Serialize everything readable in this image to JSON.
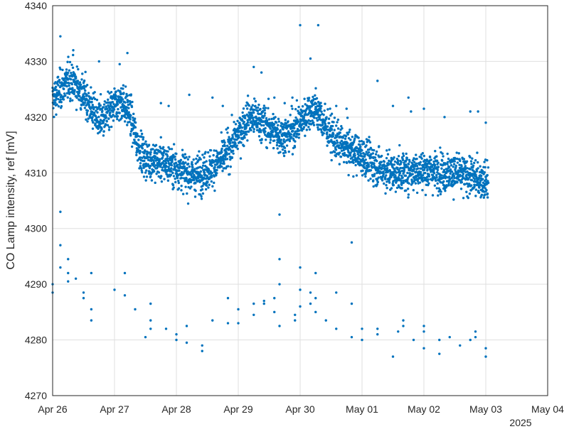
{
  "chart_data": {
    "type": "scatter",
    "title": "",
    "xlabel": "",
    "ylabel": "CO Lamp intensity, ref [mV]",
    "x_secondary_label": "2025",
    "x_ticks": [
      "Apr 26",
      "Apr 27",
      "Apr 28",
      "Apr 29",
      "Apr 30",
      "May 01",
      "May 02",
      "May 03",
      "May 04"
    ],
    "xlim": [
      "2025-04-26",
      "2025-05-04"
    ],
    "ylim": [
      4270,
      4340
    ],
    "y_ticks": [
      4270,
      4280,
      4290,
      4300,
      4310,
      4320,
      4330,
      4340
    ],
    "grid": true,
    "marker_color": "#0072BD",
    "series": [
      {
        "trend_points": [
          [
            "2025-04-26 00:00",
            4323
          ],
          [
            "2025-04-26 04:00",
            4325.5
          ],
          [
            "2025-04-26 07:00",
            4327
          ],
          [
            "2025-04-26 12:00",
            4324
          ],
          [
            "2025-04-26 17:00",
            4320
          ],
          [
            "2025-04-26 20:00",
            4319.5
          ],
          [
            "2025-04-27 00:00",
            4322
          ],
          [
            "2025-04-27 03:00",
            4323
          ],
          [
            "2025-04-27 06:00",
            4320.5
          ],
          [
            "2025-04-27 09:00",
            4315
          ],
          [
            "2025-04-27 12:00",
            4312.5
          ],
          [
            "2025-04-27 18:00",
            4312
          ],
          [
            "2025-04-28 00:00",
            4311
          ],
          [
            "2025-04-28 06:00",
            4309.5
          ],
          [
            "2025-04-28 10:00",
            4310
          ],
          [
            "2025-04-28 14:00",
            4311
          ],
          [
            "2025-04-28 19:00",
            4313
          ],
          [
            "2025-04-29 00:00",
            4317
          ],
          [
            "2025-04-29 04:00",
            4320
          ],
          [
            "2025-04-29 08:00",
            4319.5
          ],
          [
            "2025-04-29 12:00",
            4318
          ],
          [
            "2025-04-29 18:00",
            4316.5
          ],
          [
            "2025-04-30 00:00",
            4319
          ],
          [
            "2025-04-30 03:00",
            4321
          ],
          [
            "2025-04-30 06:00",
            4321.5
          ],
          [
            "2025-04-30 09:00",
            4319
          ],
          [
            "2025-04-30 14:00",
            4315.5
          ],
          [
            "2025-04-30 20:00",
            4314
          ],
          [
            "2025-05-01 00:00",
            4313
          ],
          [
            "2025-05-01 06:00",
            4311
          ],
          [
            "2025-05-01 12:00",
            4310
          ],
          [
            "2025-05-02 00:00",
            4310.5
          ],
          [
            "2025-05-02 12:00",
            4310
          ],
          [
            "2025-05-03 00:00",
            4308.5
          ],
          [
            "2025-05-03 01:00",
            4308.5
          ]
        ],
        "spread_mV": 1.7,
        "count": 3200
      },
      {
        "outliers_high": [
          [
            "2025-04-26 03:00",
            4334.5
          ],
          [
            "2025-04-26 08:00",
            4332
          ],
          [
            "2025-04-26 18:00",
            4330
          ],
          [
            "2025-04-27 02:00",
            4329.5
          ],
          [
            "2025-04-27 05:00",
            4331.5
          ],
          [
            "2025-04-27 18:00",
            4322.5
          ],
          [
            "2025-04-27 21:00",
            4322
          ],
          [
            "2025-04-28 05:00",
            4324
          ],
          [
            "2025-04-28 14:00",
            4323.5
          ],
          [
            "2025-04-28 18:00",
            4322
          ],
          [
            "2025-04-29 06:00",
            4329
          ],
          [
            "2025-04-29 09:00",
            4328
          ],
          [
            "2025-04-29 14:00",
            4323.5
          ],
          [
            "2025-04-29 18:00",
            4322.5
          ],
          [
            "2025-04-29 21:00",
            4323.5
          ],
          [
            "2025-04-30 00:00",
            4336.5
          ],
          [
            "2025-04-30 04:00",
            4330.5
          ],
          [
            "2025-04-30 07:00",
            4336.5
          ],
          [
            "2025-04-30 14:00",
            4322
          ],
          [
            "2025-04-30 18:00",
            4321.5
          ],
          [
            "2025-05-01 06:00",
            4326.5
          ],
          [
            "2025-05-01 12:00",
            4322
          ],
          [
            "2025-05-01 18:00",
            4323.5
          ],
          [
            "2025-05-01 19:00",
            4321
          ],
          [
            "2025-05-02 00:00",
            4321.5
          ],
          [
            "2025-05-02 08:00",
            4320
          ],
          [
            "2025-05-02 18:00",
            4321
          ],
          [
            "2025-05-02 21:00",
            4321
          ],
          [
            "2025-05-03 00:00",
            4319
          ]
        ]
      },
      {
        "outliers_low": [
          [
            "2025-04-26 00:00",
            4290
          ],
          [
            "2025-04-26 00:00",
            4288.5
          ],
          [
            "2025-04-26 03:00",
            4303
          ],
          [
            "2025-04-26 03:00",
            4297
          ],
          [
            "2025-04-26 03:00",
            4293
          ],
          [
            "2025-04-26 06:00",
            4294.5
          ],
          [
            "2025-04-26 06:00",
            4292
          ],
          [
            "2025-04-26 06:00",
            4290.5
          ],
          [
            "2025-04-26 09:00",
            4291
          ],
          [
            "2025-04-26 12:00",
            4288.5
          ],
          [
            "2025-04-26 12:00",
            4287.5
          ],
          [
            "2025-04-26 15:00",
            4292
          ],
          [
            "2025-04-26 15:00",
            4285.5
          ],
          [
            "2025-04-26 15:00",
            4283.5
          ],
          [
            "2025-04-27 00:00",
            4289
          ],
          [
            "2025-04-27 04:00",
            4292
          ],
          [
            "2025-04-27 04:00",
            4288
          ],
          [
            "2025-04-27 08:00",
            4285.5
          ],
          [
            "2025-04-27 12:00",
            4280.5
          ],
          [
            "2025-04-27 14:00",
            4286.5
          ],
          [
            "2025-04-27 14:00",
            4283.5
          ],
          [
            "2025-04-27 14:00",
            4282
          ],
          [
            "2025-04-27 20:00",
            4282
          ],
          [
            "2025-04-28 00:00",
            4281
          ],
          [
            "2025-04-28 00:00",
            4280
          ],
          [
            "2025-04-28 04:00",
            4282.5
          ],
          [
            "2025-04-28 04:00",
            4279.5
          ],
          [
            "2025-04-28 10:00",
            4279
          ],
          [
            "2025-04-28 10:00",
            4278
          ],
          [
            "2025-04-28 14:00",
            4283.5
          ],
          [
            "2025-04-28 20:00",
            4287.5
          ],
          [
            "2025-04-28 20:00",
            4283
          ],
          [
            "2025-04-29 00:00",
            4285.5
          ],
          [
            "2025-04-29 00:00",
            4283
          ],
          [
            "2025-04-29 06:00",
            4286.5
          ],
          [
            "2025-04-29 06:00",
            4284.5
          ],
          [
            "2025-04-29 10:00",
            4287
          ],
          [
            "2025-04-29 10:00",
            4286.5
          ],
          [
            "2025-04-29 14:00",
            4287.5
          ],
          [
            "2025-04-29 14:00",
            4285
          ],
          [
            "2025-04-29 16:00",
            4302.5
          ],
          [
            "2025-04-29 16:00",
            4294.5
          ],
          [
            "2025-04-29 16:00",
            4290
          ],
          [
            "2025-04-29 16:00",
            4282.5
          ],
          [
            "2025-04-29 22:00",
            4284.5
          ],
          [
            "2025-04-29 22:00",
            4283.5
          ],
          [
            "2025-04-30 00:00",
            4293
          ],
          [
            "2025-04-30 00:00",
            4289
          ],
          [
            "2025-04-30 00:00",
            4286
          ],
          [
            "2025-04-30 04:00",
            4288.5
          ],
          [
            "2025-04-30 04:00",
            4286.5
          ],
          [
            "2025-04-30 06:00",
            4292
          ],
          [
            "2025-04-30 06:00",
            4287.5
          ],
          [
            "2025-04-30 06:00",
            4285
          ],
          [
            "2025-04-30 10:00",
            4283.5
          ],
          [
            "2025-04-30 14:00",
            4288.5
          ],
          [
            "2025-04-30 14:00",
            4282
          ],
          [
            "2025-04-30 20:00",
            4297.5
          ],
          [
            "2025-04-30 20:00",
            4286.5
          ],
          [
            "2025-04-30 20:00",
            4280.5
          ],
          [
            "2025-05-01 00:00",
            4282
          ],
          [
            "2025-05-01 00:00",
            4280
          ],
          [
            "2025-05-01 06:00",
            4282
          ],
          [
            "2025-05-01 06:00",
            4281
          ],
          [
            "2025-05-01 12:00",
            4277
          ],
          [
            "2025-05-01 14:00",
            4281.5
          ],
          [
            "2025-05-01 16:00",
            4283.5
          ],
          [
            "2025-05-01 16:00",
            4282.5
          ],
          [
            "2025-05-01 20:00",
            4280
          ],
          [
            "2025-05-02 00:00",
            4282.5
          ],
          [
            "2025-05-02 00:00",
            4281.5
          ],
          [
            "2025-05-02 00:00",
            4278.5
          ],
          [
            "2025-05-02 06:00",
            4280
          ],
          [
            "2025-05-02 06:00",
            4277.5
          ],
          [
            "2025-05-02 10:00",
            4280.5
          ],
          [
            "2025-05-02 14:00",
            4279
          ],
          [
            "2025-05-02 18:00",
            4280
          ],
          [
            "2025-05-02 20:00",
            4281.5
          ],
          [
            "2025-05-02 20:00",
            4280.5
          ],
          [
            "2025-05-03 00:00",
            4278.5
          ],
          [
            "2025-05-03 00:00",
            4277
          ]
        ]
      }
    ]
  }
}
